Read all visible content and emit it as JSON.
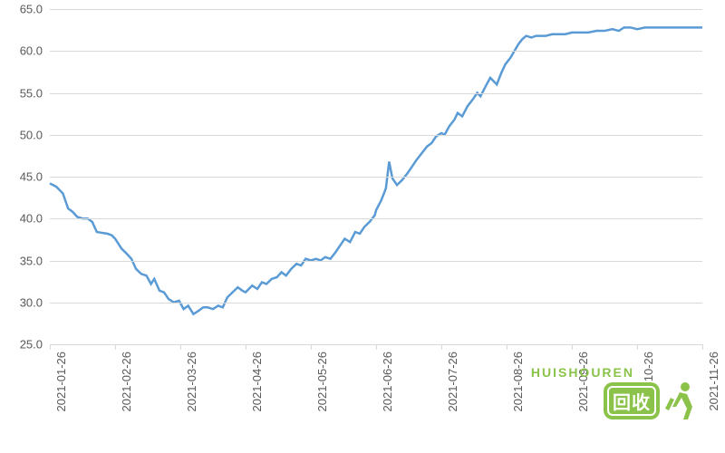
{
  "chart": {
    "type": "line",
    "background_color": "#ffffff",
    "grid_color": "#d9d9d9",
    "axis_label_color": "#595959",
    "axis_fontsize": 13,
    "line_color": "#5b9bd5",
    "line_width": 2.5,
    "ylim": [
      25.0,
      65.0
    ],
    "ytick_step": 5.0,
    "yticks": [
      "25.0",
      "30.0",
      "35.0",
      "40.0",
      "45.0",
      "50.0",
      "55.0",
      "60.0",
      "65.0"
    ],
    "xticks": [
      "2021-01-26",
      "2021-02-26",
      "2021-03-26",
      "2021-04-26",
      "2021-05-26",
      "2021-06-26",
      "2021-07-26",
      "2021-08-26",
      "2021-09-26",
      "2021-10-26",
      "2021-11-26"
    ],
    "x_rotation_deg": -90,
    "series": [
      {
        "x": 0.0,
        "y": 44.2
      },
      {
        "x": 0.01,
        "y": 43.8
      },
      {
        "x": 0.02,
        "y": 43.0
      },
      {
        "x": 0.028,
        "y": 41.2
      },
      {
        "x": 0.035,
        "y": 40.8
      },
      {
        "x": 0.042,
        "y": 40.2
      },
      {
        "x": 0.05,
        "y": 40.0
      },
      {
        "x": 0.058,
        "y": 40.0
      },
      {
        "x": 0.065,
        "y": 39.6
      },
      {
        "x": 0.072,
        "y": 38.4
      },
      {
        "x": 0.08,
        "y": 38.3
      },
      {
        "x": 0.088,
        "y": 38.2
      },
      {
        "x": 0.095,
        "y": 38.0
      },
      {
        "x": 0.1,
        "y": 37.6
      },
      {
        "x": 0.11,
        "y": 36.4
      },
      {
        "x": 0.118,
        "y": 35.8
      },
      {
        "x": 0.125,
        "y": 35.2
      },
      {
        "x": 0.132,
        "y": 34.0
      },
      {
        "x": 0.14,
        "y": 33.4
      },
      {
        "x": 0.148,
        "y": 33.2
      },
      {
        "x": 0.155,
        "y": 32.2
      },
      {
        "x": 0.16,
        "y": 32.8
      },
      {
        "x": 0.168,
        "y": 31.4
      },
      {
        "x": 0.175,
        "y": 31.2
      },
      {
        "x": 0.182,
        "y": 30.4
      },
      {
        "x": 0.19,
        "y": 30.0
      },
      {
        "x": 0.198,
        "y": 30.2
      },
      {
        "x": 0.205,
        "y": 29.2
      },
      {
        "x": 0.212,
        "y": 29.6
      },
      {
        "x": 0.22,
        "y": 28.6
      },
      {
        "x": 0.228,
        "y": 29.0
      },
      {
        "x": 0.235,
        "y": 29.4
      },
      {
        "x": 0.242,
        "y": 29.4
      },
      {
        "x": 0.25,
        "y": 29.2
      },
      {
        "x": 0.258,
        "y": 29.6
      },
      {
        "x": 0.265,
        "y": 29.4
      },
      {
        "x": 0.272,
        "y": 30.6
      },
      {
        "x": 0.28,
        "y": 31.2
      },
      {
        "x": 0.288,
        "y": 31.8
      },
      {
        "x": 0.295,
        "y": 31.4
      },
      {
        "x": 0.3,
        "y": 31.2
      },
      {
        "x": 0.31,
        "y": 32.0
      },
      {
        "x": 0.318,
        "y": 31.6
      },
      {
        "x": 0.325,
        "y": 32.4
      },
      {
        "x": 0.332,
        "y": 32.2
      },
      {
        "x": 0.34,
        "y": 32.8
      },
      {
        "x": 0.348,
        "y": 33.0
      },
      {
        "x": 0.355,
        "y": 33.6
      },
      {
        "x": 0.362,
        "y": 33.2
      },
      {
        "x": 0.37,
        "y": 34.0
      },
      {
        "x": 0.378,
        "y": 34.6
      },
      {
        "x": 0.385,
        "y": 34.4
      },
      {
        "x": 0.392,
        "y": 35.2
      },
      {
        "x": 0.4,
        "y": 35.0
      },
      {
        "x": 0.408,
        "y": 35.2
      },
      {
        "x": 0.415,
        "y": 35.0
      },
      {
        "x": 0.422,
        "y": 35.4
      },
      {
        "x": 0.43,
        "y": 35.2
      },
      {
        "x": 0.438,
        "y": 36.0
      },
      {
        "x": 0.445,
        "y": 36.8
      },
      {
        "x": 0.452,
        "y": 37.6
      },
      {
        "x": 0.46,
        "y": 37.2
      },
      {
        "x": 0.468,
        "y": 38.4
      },
      {
        "x": 0.475,
        "y": 38.2
      },
      {
        "x": 0.482,
        "y": 39.0
      },
      {
        "x": 0.49,
        "y": 39.6
      },
      {
        "x": 0.498,
        "y": 40.4
      },
      {
        "x": 0.5,
        "y": 41.0
      },
      {
        "x": 0.508,
        "y": 42.2
      },
      {
        "x": 0.515,
        "y": 43.6
      },
      {
        "x": 0.52,
        "y": 46.8
      },
      {
        "x": 0.525,
        "y": 44.8
      },
      {
        "x": 0.532,
        "y": 44.0
      },
      {
        "x": 0.54,
        "y": 44.6
      },
      {
        "x": 0.548,
        "y": 45.4
      },
      {
        "x": 0.555,
        "y": 46.2
      },
      {
        "x": 0.562,
        "y": 47.0
      },
      {
        "x": 0.57,
        "y": 47.8
      },
      {
        "x": 0.578,
        "y": 48.6
      },
      {
        "x": 0.585,
        "y": 49.0
      },
      {
        "x": 0.592,
        "y": 49.8
      },
      {
        "x": 0.6,
        "y": 50.2
      },
      {
        "x": 0.605,
        "y": 50.0
      },
      {
        "x": 0.612,
        "y": 51.0
      },
      {
        "x": 0.62,
        "y": 51.8
      },
      {
        "x": 0.625,
        "y": 52.6
      },
      {
        "x": 0.632,
        "y": 52.2
      },
      {
        "x": 0.64,
        "y": 53.4
      },
      {
        "x": 0.648,
        "y": 54.2
      },
      {
        "x": 0.655,
        "y": 55.0
      },
      {
        "x": 0.66,
        "y": 54.6
      },
      {
        "x": 0.668,
        "y": 55.8
      },
      {
        "x": 0.675,
        "y": 56.8
      },
      {
        "x": 0.68,
        "y": 56.4
      },
      {
        "x": 0.685,
        "y": 56.0
      },
      {
        "x": 0.692,
        "y": 57.4
      },
      {
        "x": 0.698,
        "y": 58.4
      },
      {
        "x": 0.7,
        "y": 58.6
      },
      {
        "x": 0.706,
        "y": 59.2
      },
      {
        "x": 0.712,
        "y": 60.0
      },
      {
        "x": 0.718,
        "y": 60.8
      },
      {
        "x": 0.724,
        "y": 61.4
      },
      {
        "x": 0.73,
        "y": 61.8
      },
      {
        "x": 0.738,
        "y": 61.6
      },
      {
        "x": 0.745,
        "y": 61.8
      },
      {
        "x": 0.752,
        "y": 61.8
      },
      {
        "x": 0.76,
        "y": 61.8
      },
      {
        "x": 0.77,
        "y": 62.0
      },
      {
        "x": 0.78,
        "y": 62.0
      },
      {
        "x": 0.79,
        "y": 62.0
      },
      {
        "x": 0.8,
        "y": 62.2
      },
      {
        "x": 0.812,
        "y": 62.2
      },
      {
        "x": 0.825,
        "y": 62.2
      },
      {
        "x": 0.838,
        "y": 62.4
      },
      {
        "x": 0.85,
        "y": 62.4
      },
      {
        "x": 0.862,
        "y": 62.6
      },
      {
        "x": 0.872,
        "y": 62.4
      },
      {
        "x": 0.88,
        "y": 62.8
      },
      {
        "x": 0.89,
        "y": 62.8
      },
      {
        "x": 0.9,
        "y": 62.6
      },
      {
        "x": 0.912,
        "y": 62.8
      },
      {
        "x": 0.925,
        "y": 62.8
      },
      {
        "x": 0.938,
        "y": 62.8
      },
      {
        "x": 0.95,
        "y": 62.8
      },
      {
        "x": 0.962,
        "y": 62.8
      },
      {
        "x": 0.975,
        "y": 62.8
      },
      {
        "x": 0.988,
        "y": 62.8
      },
      {
        "x": 1.0,
        "y": 62.8
      }
    ]
  },
  "watermark": {
    "brand_top": "HUISHOUREN",
    "brand_main": "回收",
    "brand_color": "#8bc34a",
    "text_color": "#ffffff"
  }
}
